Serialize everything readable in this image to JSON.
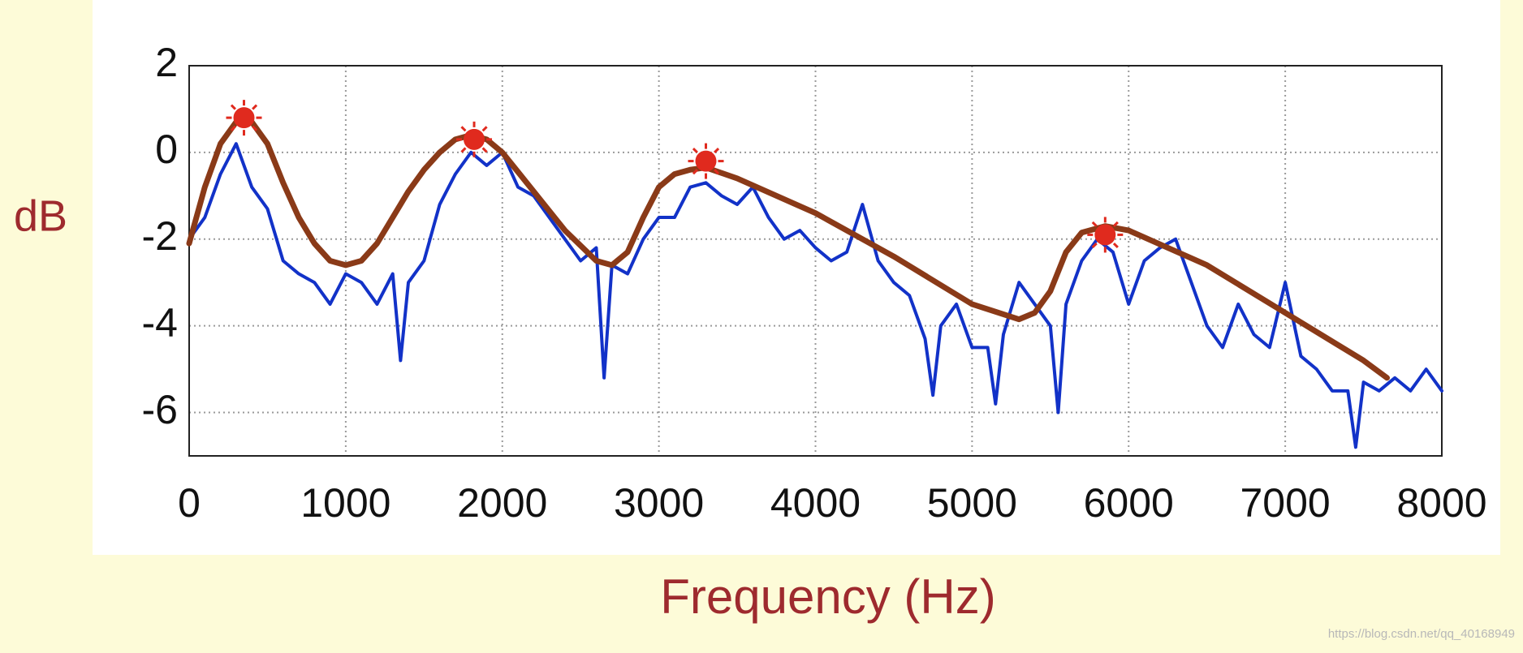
{
  "chart_data": {
    "type": "line",
    "x_label": "Frequency (Hz)",
    "y_label": "dB",
    "watermark": "https://blog.csdn.net/qq_40168949",
    "xlim": [
      0,
      8000
    ],
    "ylim": [
      -7,
      2
    ],
    "xticks": [
      0,
      1000,
      2000,
      3000,
      4000,
      5000,
      6000,
      7000,
      8000
    ],
    "yticks": [
      -6,
      -4,
      -2,
      0,
      2
    ],
    "grid": true,
    "series": [
      {
        "color": "#1232c8",
        "x": [
          0,
          100,
          200,
          300,
          400,
          500,
          600,
          700,
          800,
          900,
          1000,
          1100,
          1200,
          1300,
          1350,
          1400,
          1500,
          1600,
          1700,
          1800,
          1900,
          2000,
          2100,
          2200,
          2300,
          2400,
          2500,
          2600,
          2650,
          2700,
          2800,
          2900,
          3000,
          3100,
          3200,
          3300,
          3400,
          3500,
          3600,
          3700,
          3800,
          3900,
          4000,
          4100,
          4200,
          4300,
          4400,
          4500,
          4600,
          4700,
          4750,
          4800,
          4900,
          5000,
          5100,
          5150,
          5200,
          5300,
          5400,
          5500,
          5550,
          5600,
          5700,
          5800,
          5900,
          6000,
          6100,
          6200,
          6300,
          6400,
          6500,
          6600,
          6700,
          6800,
          6900,
          7000,
          7100,
          7200,
          7300,
          7400,
          7450,
          7500,
          7600,
          7700,
          7800,
          7900,
          8000
        ],
        "values": [
          -2.0,
          -1.5,
          -0.5,
          0.2,
          -0.8,
          -1.3,
          -2.5,
          -2.8,
          -3.0,
          -3.5,
          -2.8,
          -3.0,
          -3.5,
          -2.8,
          -4.8,
          -3.0,
          -2.5,
          -1.2,
          -0.5,
          0.0,
          -0.3,
          0.0,
          -0.8,
          -1.0,
          -1.5,
          -2.0,
          -2.5,
          -2.2,
          -5.2,
          -2.6,
          -2.8,
          -2.0,
          -1.5,
          -1.5,
          -0.8,
          -0.7,
          -1.0,
          -1.2,
          -0.8,
          -1.5,
          -2.0,
          -1.8,
          -2.2,
          -2.5,
          -2.3,
          -1.2,
          -2.5,
          -3.0,
          -3.3,
          -4.3,
          -5.6,
          -4.0,
          -3.5,
          -4.5,
          -4.5,
          -5.8,
          -4.2,
          -3.0,
          -3.5,
          -4.0,
          -6.0,
          -3.5,
          -2.5,
          -2.0,
          -2.3,
          -3.5,
          -2.5,
          -2.2,
          -2.0,
          -3.0,
          -4.0,
          -4.5,
          -3.5,
          -4.2,
          -4.5,
          -3.0,
          -4.7,
          -5.0,
          -5.5,
          -5.5,
          -6.8,
          -5.3,
          -5.5,
          -5.2,
          -5.5,
          -5.0,
          -5.5
        ]
      },
      {
        "color": "#8a3a18",
        "x": [
          0,
          100,
          200,
          300,
          400,
          500,
          600,
          700,
          800,
          900,
          1000,
          1100,
          1200,
          1300,
          1400,
          1500,
          1600,
          1700,
          1800,
          1900,
          2000,
          2200,
          2400,
          2600,
          2700,
          2800,
          2900,
          3000,
          3100,
          3200,
          3300,
          3500,
          4000,
          4500,
          5000,
          5300,
          5400,
          5500,
          5600,
          5700,
          5850,
          6000,
          6500,
          7000,
          7500,
          7650
        ],
        "values": [
          -2.1,
          -0.8,
          0.2,
          0.7,
          0.7,
          0.2,
          -0.7,
          -1.5,
          -2.1,
          -2.5,
          -2.6,
          -2.5,
          -2.1,
          -1.5,
          -0.9,
          -0.4,
          0.0,
          0.3,
          0.4,
          0.3,
          0.0,
          -0.9,
          -1.8,
          -2.5,
          -2.6,
          -2.3,
          -1.5,
          -0.8,
          -0.5,
          -0.4,
          -0.35,
          -0.6,
          -1.4,
          -2.4,
          -3.5,
          -3.85,
          -3.7,
          -3.2,
          -2.3,
          -1.85,
          -1.7,
          -1.8,
          -2.6,
          -3.7,
          -4.8,
          -5.2
        ]
      }
    ],
    "peaks": {
      "color": "#e02a1e",
      "x": [
        350,
        1820,
        3300,
        5850
      ],
      "values": [
        0.8,
        0.3,
        -0.2,
        -1.9
      ]
    }
  }
}
